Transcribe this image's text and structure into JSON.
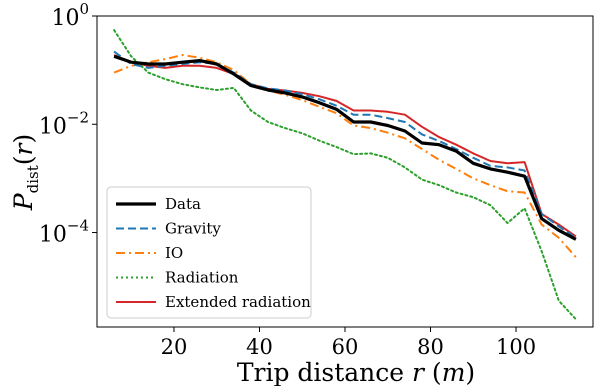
{
  "chart_data": {
    "type": "line",
    "title": "",
    "xlabel": "Trip distance r (m)",
    "ylabel": "P_dist(r)",
    "xlim": [
      2,
      118
    ],
    "ylim": [
      1.8e-06,
      1
    ],
    "yscale": "log",
    "grid": false,
    "legend_position": "lower-left",
    "x_ticks": [
      20,
      40,
      60,
      80,
      100
    ],
    "y_ticks": [
      {
        "value": 1,
        "base": "10",
        "exp": "0"
      },
      {
        "value": 0.01,
        "base": "10",
        "exp": "−2"
      },
      {
        "value": 0.0001,
        "base": "10",
        "exp": "−4"
      }
    ],
    "series": [
      {
        "name": "Data",
        "color": "#000000",
        "dash": "solid",
        "width": 3.2,
        "x": [
          6,
          10,
          14,
          18,
          22,
          26,
          30,
          34,
          38,
          42,
          46,
          50,
          54,
          58,
          62,
          66,
          70,
          74,
          78,
          82,
          86,
          90,
          94,
          98,
          102,
          106,
          110,
          114
        ],
        "y": [
          0.18,
          0.14,
          0.13,
          0.13,
          0.14,
          0.15,
          0.13,
          0.085,
          0.052,
          0.043,
          0.038,
          0.032,
          0.025,
          0.019,
          0.011,
          0.011,
          0.0095,
          0.0075,
          0.0045,
          0.0042,
          0.0032,
          0.0019,
          0.0015,
          0.0013,
          0.0011,
          0.00018,
          0.00011,
          7.5e-05
        ]
      },
      {
        "name": "Gravity",
        "color": "#1f77b4",
        "dash": "dashed",
        "width": 2.0,
        "x": [
          6,
          10,
          14,
          18,
          22,
          26,
          30,
          34,
          38,
          42,
          46,
          50,
          54,
          58,
          62,
          66,
          70,
          74,
          78,
          82,
          86,
          90,
          94,
          98,
          102,
          106,
          110,
          114
        ],
        "y": [
          0.22,
          0.13,
          0.11,
          0.12,
          0.13,
          0.14,
          0.13,
          0.09,
          0.055,
          0.046,
          0.042,
          0.036,
          0.029,
          0.022,
          0.015,
          0.015,
          0.013,
          0.011,
          0.0065,
          0.0049,
          0.0035,
          0.0024,
          0.0017,
          0.0016,
          0.0014,
          0.00022,
          0.00013,
          8e-05
        ]
      },
      {
        "name": "IO",
        "color": "#ff7f0e",
        "dash": "dashdot",
        "width": 2.0,
        "x": [
          6,
          10,
          14,
          18,
          22,
          26,
          30,
          34,
          38,
          42,
          46,
          50,
          54,
          58,
          62,
          66,
          70,
          74,
          78,
          82,
          86,
          90,
          94,
          98,
          102,
          106,
          110,
          114
        ],
        "y": [
          0.09,
          0.12,
          0.14,
          0.16,
          0.19,
          0.17,
          0.14,
          0.1,
          0.055,
          0.042,
          0.035,
          0.028,
          0.021,
          0.016,
          0.0095,
          0.0085,
          0.007,
          0.0055,
          0.0035,
          0.0022,
          0.0015,
          0.001,
          0.00075,
          0.00058,
          0.00055,
          0.00014,
          8e-05,
          3.5e-05
        ]
      },
      {
        "name": "Radiation",
        "color": "#2ca02c",
        "dash": "dotted",
        "width": 2.0,
        "x": [
          6,
          10,
          14,
          18,
          22,
          26,
          30,
          34,
          38,
          42,
          46,
          50,
          54,
          58,
          62,
          66,
          70,
          74,
          78,
          82,
          86,
          90,
          94,
          98,
          102,
          106,
          110,
          114
        ],
        "y": [
          0.55,
          0.18,
          0.09,
          0.068,
          0.055,
          0.048,
          0.043,
          0.047,
          0.018,
          0.011,
          0.0085,
          0.0068,
          0.005,
          0.0038,
          0.0028,
          0.0029,
          0.0024,
          0.0016,
          0.00095,
          0.00075,
          0.00055,
          0.00045,
          0.00032,
          0.00015,
          0.00028,
          4.5e-05,
          5.5e-06,
          2.5e-06
        ]
      },
      {
        "name": "Extended radiation",
        "color": "#d62728",
        "dash": "solid",
        "width": 2.0,
        "x": [
          6,
          10,
          14,
          18,
          22,
          26,
          30,
          34,
          38,
          42,
          46,
          50,
          54,
          58,
          62,
          66,
          70,
          74,
          78,
          82,
          86,
          90,
          94,
          98,
          102,
          106,
          110,
          114
        ],
        "y": [
          0.19,
          0.14,
          0.12,
          0.11,
          0.12,
          0.12,
          0.11,
          0.085,
          0.055,
          0.045,
          0.042,
          0.038,
          0.033,
          0.027,
          0.018,
          0.018,
          0.017,
          0.015,
          0.009,
          0.0058,
          0.0042,
          0.0029,
          0.0021,
          0.0019,
          0.002,
          0.00022,
          0.00014,
          8.5e-05
        ]
      }
    ]
  }
}
